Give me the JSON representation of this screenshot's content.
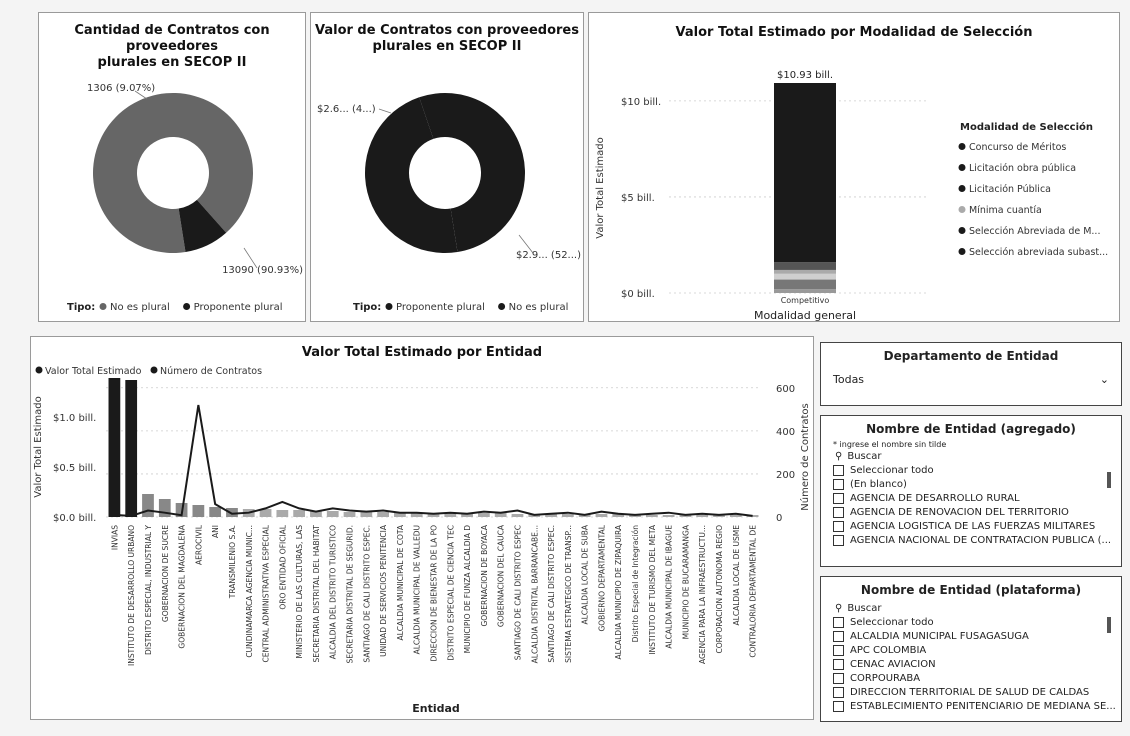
{
  "colors": {
    "dark": "#1a1a1a",
    "mid": "#666666",
    "light": "#b0b0b0",
    "panel": "#ffffff"
  },
  "panels": {
    "pie1": {
      "title_line1": "Cantidad de Contratos con proveedores",
      "title_line2": "plurales en SECOP II"
    },
    "pie2": {
      "title_line1": "Valor de Contratos con proveedores",
      "title_line2": "plurales en SECOP II"
    },
    "stacked": {
      "title": "Valor Total Estimado por Modalidad de Selección"
    },
    "combo": {
      "title": "Valor Total Estimado por Entidad"
    }
  },
  "chart_data": [
    {
      "type": "pie",
      "title": "Cantidad de Contratos con proveedores plurales en SECOP II",
      "legend_title": "Tipo:",
      "legend_position": "bottom",
      "slices": [
        {
          "name": "No es plural",
          "value": 13090,
          "label": "13090 (90.93%)"
        },
        {
          "name": "Proponente plural",
          "value": 1306,
          "label": "1306 (9.07%)"
        }
      ]
    },
    {
      "type": "pie",
      "title": "Valor de Contratos con proveedores plurales en SECOP II",
      "legend_title": "Tipo:",
      "legend_position": "bottom",
      "slices": [
        {
          "name": "Proponente plural",
          "value": 2.6,
          "label": "$2.6... (4...)"
        },
        {
          "name": "No es plural",
          "value": 2.9,
          "label": "$2.9... (52...)"
        }
      ]
    },
    {
      "type": "bar",
      "stacked": true,
      "title": "Valor Total Estimado por Modalidad de Selección",
      "xlabel": "Modalidad general",
      "ylabel": "Valor Total Estimado",
      "categories": [
        "Competitivo"
      ],
      "total_label": "$10.93 bill.",
      "yticks": [
        "$0 bill.",
        "$5 bill.",
        "$10 bill."
      ],
      "ylim": [
        0,
        10.93
      ],
      "legend_title": "Modalidad de Selección",
      "legend_position": "right",
      "series": [
        {
          "name": "Concurso de Méritos",
          "values": [
            0.2
          ]
        },
        {
          "name": "Licitación obra pública",
          "values": [
            0.5
          ]
        },
        {
          "name": "Licitación Pública",
          "values": [
            0.3
          ]
        },
        {
          "name": "Mínima cuantía",
          "values": [
            0.2
          ]
        },
        {
          "name": "Selección Abreviada de M...",
          "values": [
            0.4
          ]
        },
        {
          "name": "Selección abreviada subast...",
          "values": [
            9.33
          ]
        }
      ]
    },
    {
      "type": "bar",
      "title": "Valor Total Estimado por Entidad",
      "xlabel": "Entidad",
      "ylabel": "Valor Total Estimado",
      "y2label": "Número de Contratos",
      "legend_position": "top-left",
      "legend": [
        "Valor Total Estimado",
        "Número de Contratos"
      ],
      "yticks": [
        "$0.0 bill.",
        "$0.5 bill.",
        "$1.0 bill."
      ],
      "y2ticks": [
        "0",
        "200",
        "400",
        "600"
      ],
      "ylim": [
        0,
        1.4
      ],
      "y2lim": [
        0,
        650
      ],
      "categories": [
        "INVIAS",
        "INSTITUTO DE DESARROLLO URBANO",
        "DISTRITO ESPECIAL, INDUSTRIAL Y P...",
        "GOBERNACION DE SUCRE",
        "GOBERNACION DEL MAGDALENA",
        "AEROCIVIL",
        "ANI",
        "TRANSMILENIO S.A.",
        "CUNDINAMARCA AGENCIA MUNIC...",
        "CENTRAL ADMINISTRATIVA ESPECIAL",
        "ORO ENTIDAD OFICIAL",
        "MINISTERIO DE LAS CULTURAS, LAS",
        "SECRETARIA DISTRITAL DEL HABITAT",
        "ALCALDIA DEL DISTRITO TURISTICO",
        "SECRETARIA DISTRITAL DE SEGURID...",
        "SANTIAGO DE CALI DISTRITO ESPEC...",
        "UNIDAD DE SERVICIOS PENITENCIA",
        "ALCALDIA MUNICIPAL DE COTA",
        "ALCALDIA MUNICIPAL DE VALLEDU",
        "DIRECCION DE BIENESTAR DE LA PO",
        "DISTRITO ESPECIAL DE CIENCIA TEC...",
        "MUNICIPIO DE FUNZA ALCALDIA D",
        "GOBERNACION DE BOYACA",
        "GOBERNACION DEL CAUCA",
        "SANTIAGO DE CALI DISTRITO ESPEC",
        "ALCALDIA DISTRITAL BARRANCABE...",
        "SANTIAGO DE CALI DISTRITO ESPEC...",
        "SISTEMA ESTRATEGICO DE TRANSP...",
        "ALCALDIA LOCAL DE SUBA",
        "GOBIERNO DEPARTAMENTAL",
        "ALCALDIA MUNICIPIO DE ZIPAQUIRA",
        "Distrito Especial de Integración S",
        "INSTITUTO DE TURISMO DEL META",
        "ALCALDIA MUNICIPAL DE IBAGUE",
        "MUNICIPIO DE BUCARAMANGA",
        "AGENCIA PARA LA INFRAESTRUCTU...",
        "CORPORACION AUTONOMA REGIO",
        "ALCALDIA LOCAL DE USME",
        "CONTRALORIA DEPARTAMENTAL DE"
      ],
      "series": [
        {
          "name": "Valor Total Estimado",
          "values": [
            1.39,
            1.37,
            0.23,
            0.18,
            0.14,
            0.12,
            0.1,
            0.09,
            0.08,
            0.08,
            0.07,
            0.07,
            0.06,
            0.06,
            0.05,
            0.05,
            0.05,
            0.05,
            0.04,
            0.04,
            0.04,
            0.04,
            0.04,
            0.04,
            0.03,
            0.03,
            0.03,
            0.03,
            0.03,
            0.03,
            0.03,
            0.03,
            0.02,
            0.02,
            0.02,
            0.02,
            0.02,
            0.02,
            0.02
          ]
        },
        {
          "name": "Número de Contratos",
          "values": [
            10,
            5,
            30,
            20,
            8,
            520,
            60,
            15,
            20,
            40,
            70,
            40,
            25,
            40,
            30,
            25,
            30,
            20,
            20,
            15,
            20,
            15,
            25,
            20,
            30,
            10,
            15,
            20,
            10,
            25,
            15,
            10,
            15,
            20,
            10,
            15,
            10,
            15,
            5
          ]
        }
      ]
    }
  ],
  "slicers": {
    "departamento": {
      "title": "Departamento de Entidad",
      "value": "Todas"
    },
    "agregado": {
      "title": "Nombre de Entidad (agregado)",
      "hint": "* ingrese el nombre sin tilde",
      "search_placeholder": "Buscar",
      "items": [
        "Seleccionar todo",
        "(En blanco)",
        "AGENCIA DE DESARROLLO RURAL",
        "AGENCIA DE RENOVACION DEL TERRITORIO",
        "AGENCIA LOGISTICA DE LAS FUERZAS MILITARES",
        "AGENCIA NACIONAL DE CONTRATACION PUBLICA (..."
      ]
    },
    "plataforma": {
      "title": "Nombre de Entidad (plataforma)",
      "search_placeholder": "Buscar",
      "items": [
        "Seleccionar todo",
        "ALCALDIA MUNICIPAL FUSAGASUGA",
        "APC COLOMBIA",
        "CENAC AVIACION",
        "CORPOURABA",
        "DIRECCION TERRITORIAL DE SALUD DE CALDAS",
        "ESTABLECIMIENTO PENITENCIARIO DE MEDIANA SE..."
      ]
    }
  }
}
